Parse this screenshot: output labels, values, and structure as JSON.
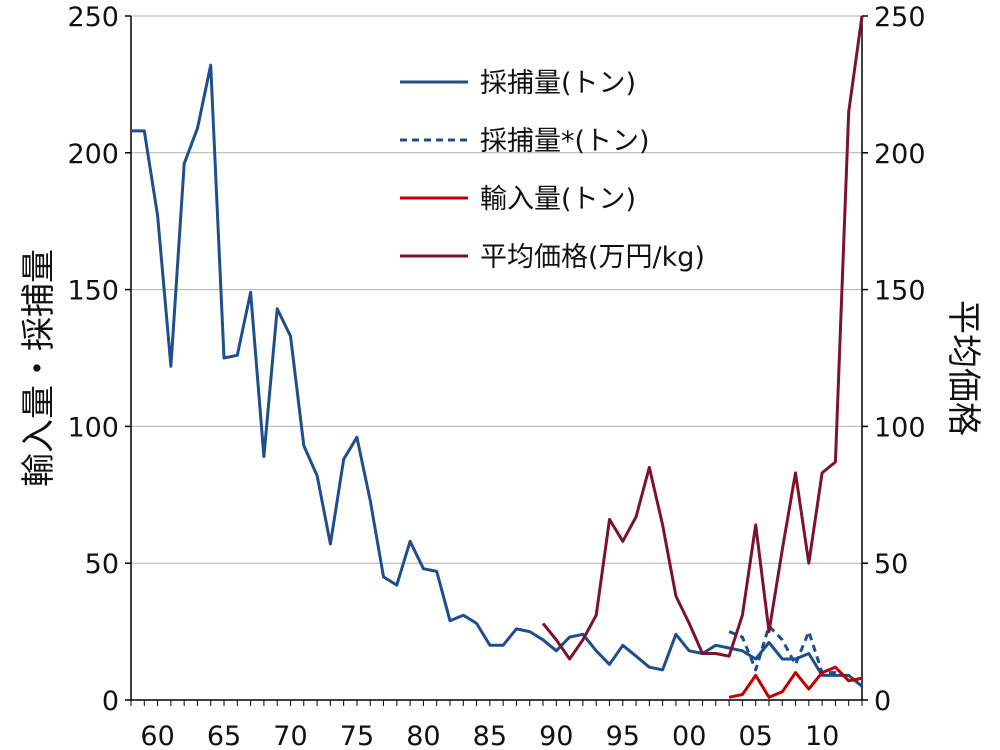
{
  "chart_data": {
    "type": "line",
    "x_tick_labels": [
      "60",
      "65",
      "70",
      "75",
      "80",
      "85",
      "90",
      "95",
      "00",
      "05",
      "10"
    ],
    "x_ticks": [
      1960,
      1965,
      1970,
      1975,
      1980,
      1985,
      1990,
      1995,
      2000,
      2005,
      2010
    ],
    "xlim": [
      1958,
      2013
    ],
    "ylabel_left": "輸入量・採捕量",
    "ylabel_right": "平均価格",
    "ylim_left": [
      0,
      250
    ],
    "ylim_right": [
      0,
      250
    ],
    "y_ticks": [
      0,
      50,
      100,
      150,
      200,
      250
    ],
    "grid": true,
    "legend_position": "top-center",
    "series": [
      {
        "name": "採捕量(トン)",
        "axis": "left",
        "color": "#1f4e8c",
        "dash": "solid",
        "x": [
          1958,
          1959,
          1960,
          1961,
          1962,
          1963,
          1964,
          1965,
          1966,
          1967,
          1968,
          1969,
          1970,
          1971,
          1972,
          1973,
          1974,
          1975,
          1976,
          1977,
          1978,
          1979,
          1980,
          1981,
          1982,
          1983,
          1984,
          1985,
          1986,
          1987,
          1988,
          1989,
          1990,
          1991,
          1992,
          1993,
          1994,
          1995,
          1996,
          1997,
          1998,
          1999,
          2000,
          2001,
          2002,
          2003,
          2004,
          2005,
          2006,
          2007,
          2008,
          2009,
          2010,
          2011,
          2012,
          2013
        ],
        "y": [
          208,
          208,
          177,
          122,
          196,
          209,
          232,
          125,
          126,
          149,
          89,
          143,
          133,
          93,
          82,
          57,
          88,
          96,
          73,
          45,
          42,
          58,
          48,
          47,
          29,
          31,
          28,
          20,
          20,
          26,
          25,
          22,
          18,
          23,
          24,
          18,
          13,
          20,
          16,
          12,
          11,
          24,
          18,
          17,
          20,
          19,
          18,
          15,
          21,
          15,
          15,
          17,
          9,
          9,
          9,
          5
        ]
      },
      {
        "name": "採捕量*(トン)",
        "axis": "left",
        "color": "#1f4e8c",
        "dash": "dotted",
        "x": [
          2003,
          2004,
          2005,
          2006,
          2007,
          2008,
          2009,
          2010,
          2011,
          2012,
          2013
        ],
        "y": [
          25,
          23,
          11,
          27,
          22,
          13,
          25,
          10,
          10,
          8,
          6
        ]
      },
      {
        "name": "輸入量(トン)",
        "axis": "left",
        "color": "#c00000",
        "dash": "solid",
        "x": [
          2003,
          2004,
          2005,
          2006,
          2007,
          2008,
          2009,
          2010,
          2011,
          2012,
          2013
        ],
        "y": [
          1,
          2,
          9,
          1,
          3,
          10,
          4,
          10,
          12,
          7,
          8
        ]
      },
      {
        "name": "平均価格(万円/kg)",
        "axis": "right",
        "color": "#7b1230",
        "dash": "solid",
        "x": [
          1989,
          1990,
          1991,
          1992,
          1993,
          1994,
          1995,
          1996,
          1997,
          1998,
          1999,
          2000,
          2001,
          2002,
          2003,
          2004,
          2005,
          2006,
          2007,
          2008,
          2009,
          2010,
          2011,
          2012,
          2013
        ],
        "y": [
          28,
          22,
          15,
          22,
          31,
          66,
          58,
          67,
          85,
          64,
          38,
          28,
          17,
          17,
          16,
          31,
          64,
          25,
          55,
          83,
          50,
          83,
          87,
          215,
          250
        ]
      }
    ]
  },
  "colors": {
    "axis": "#000000",
    "grid": "#b0b0b0",
    "background": "#ffffff"
  }
}
